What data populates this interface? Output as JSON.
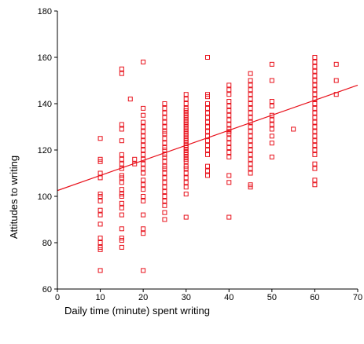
{
  "chart_data": {
    "type": "scatter",
    "title": "",
    "xlabel": "Daily time (minute) spent writing",
    "ylabel": "Attitudes to writing",
    "xlim": [
      0,
      70
    ],
    "ylim": [
      60,
      180
    ],
    "xticks": [
      "0",
      "10",
      "20",
      "30",
      "40",
      "50",
      "60",
      "70"
    ],
    "yticks": [
      "60",
      "80",
      "100",
      "120",
      "140",
      "160",
      "180"
    ],
    "grid": false,
    "legend": false,
    "marker": "square-open",
    "color": "#e8101a",
    "fit_line": {
      "intercept": 102.5,
      "slope": 0.65,
      "x_range": [
        0,
        70
      ]
    },
    "points": [
      [
        10,
        68
      ],
      [
        10,
        77
      ],
      [
        10,
        78
      ],
      [
        10,
        80
      ],
      [
        10,
        82
      ],
      [
        10,
        88
      ],
      [
        10,
        92
      ],
      [
        10,
        94
      ],
      [
        10,
        98
      ],
      [
        10,
        100
      ],
      [
        10,
        101
      ],
      [
        10,
        108
      ],
      [
        10,
        110
      ],
      [
        10,
        115
      ],
      [
        10,
        116
      ],
      [
        10,
        125
      ],
      [
        15,
        78
      ],
      [
        15,
        81
      ],
      [
        15,
        82
      ],
      [
        15,
        86
      ],
      [
        15,
        92
      ],
      [
        15,
        95
      ],
      [
        15,
        97
      ],
      [
        15,
        100
      ],
      [
        15,
        101
      ],
      [
        15,
        103
      ],
      [
        15,
        106
      ],
      [
        15,
        108
      ],
      [
        15,
        109
      ],
      [
        15,
        112
      ],
      [
        15,
        114
      ],
      [
        15,
        116
      ],
      [
        15,
        118
      ],
      [
        15,
        124
      ],
      [
        15,
        129
      ],
      [
        15,
        131
      ],
      [
        15,
        153
      ],
      [
        15,
        155
      ],
      [
        17,
        142
      ],
      [
        18,
        114
      ],
      [
        18,
        116
      ],
      [
        20,
        68
      ],
      [
        20,
        84
      ],
      [
        20,
        86
      ],
      [
        20,
        92
      ],
      [
        20,
        98
      ],
      [
        20,
        100
      ],
      [
        20,
        103
      ],
      [
        20,
        105
      ],
      [
        20,
        107
      ],
      [
        20,
        110
      ],
      [
        20,
        112
      ],
      [
        20,
        114
      ],
      [
        20,
        116
      ],
      [
        20,
        118
      ],
      [
        20,
        120
      ],
      [
        20,
        122
      ],
      [
        20,
        124
      ],
      [
        20,
        126
      ],
      [
        20,
        128
      ],
      [
        20,
        130
      ],
      [
        20,
        132
      ],
      [
        20,
        135
      ],
      [
        20,
        138
      ],
      [
        20,
        158
      ],
      [
        25,
        90
      ],
      [
        25,
        93
      ],
      [
        25,
        96
      ],
      [
        25,
        98
      ],
      [
        25,
        100
      ],
      [
        25,
        102
      ],
      [
        25,
        104
      ],
      [
        25,
        106
      ],
      [
        25,
        108
      ],
      [
        25,
        110
      ],
      [
        25,
        112
      ],
      [
        25,
        113
      ],
      [
        25,
        115
      ],
      [
        25,
        117
      ],
      [
        25,
        118
      ],
      [
        25,
        120
      ],
      [
        25,
        121
      ],
      [
        25,
        123
      ],
      [
        25,
        125
      ],
      [
        25,
        127
      ],
      [
        25,
        128
      ],
      [
        25,
        130
      ],
      [
        25,
        132
      ],
      [
        25,
        134
      ],
      [
        25,
        136
      ],
      [
        25,
        138
      ],
      [
        25,
        140
      ],
      [
        30,
        91
      ],
      [
        30,
        101
      ],
      [
        30,
        104
      ],
      [
        30,
        106
      ],
      [
        30,
        108
      ],
      [
        30,
        110
      ],
      [
        30,
        112
      ],
      [
        30,
        113
      ],
      [
        30,
        115
      ],
      [
        30,
        116
      ],
      [
        30,
        117
      ],
      [
        30,
        118
      ],
      [
        30,
        119
      ],
      [
        30,
        120
      ],
      [
        30,
        121
      ],
      [
        30,
        122
      ],
      [
        30,
        123
      ],
      [
        30,
        124
      ],
      [
        30,
        125
      ],
      [
        30,
        126
      ],
      [
        30,
        127
      ],
      [
        30,
        128
      ],
      [
        30,
        129
      ],
      [
        30,
        130
      ],
      [
        30,
        131
      ],
      [
        30,
        132
      ],
      [
        30,
        133
      ],
      [
        30,
        134
      ],
      [
        30,
        135
      ],
      [
        30,
        136
      ],
      [
        30,
        137
      ],
      [
        30,
        138
      ],
      [
        30,
        140
      ],
      [
        30,
        142
      ],
      [
        30,
        144
      ],
      [
        35,
        109
      ],
      [
        35,
        111
      ],
      [
        35,
        113
      ],
      [
        35,
        118
      ],
      [
        35,
        120
      ],
      [
        35,
        122
      ],
      [
        35,
        124
      ],
      [
        35,
        126
      ],
      [
        35,
        128
      ],
      [
        35,
        130
      ],
      [
        35,
        132
      ],
      [
        35,
        134
      ],
      [
        35,
        136
      ],
      [
        35,
        138
      ],
      [
        35,
        140
      ],
      [
        35,
        143
      ],
      [
        35,
        144
      ],
      [
        35,
        160
      ],
      [
        40,
        91
      ],
      [
        40,
        106
      ],
      [
        40,
        109
      ],
      [
        40,
        117
      ],
      [
        40,
        119
      ],
      [
        40,
        121
      ],
      [
        40,
        123
      ],
      [
        40,
        125
      ],
      [
        40,
        127
      ],
      [
        40,
        128
      ],
      [
        40,
        129
      ],
      [
        40,
        131
      ],
      [
        40,
        133
      ],
      [
        40,
        135
      ],
      [
        40,
        137
      ],
      [
        40,
        139
      ],
      [
        40,
        141
      ],
      [
        40,
        144
      ],
      [
        40,
        146
      ],
      [
        40,
        148
      ],
      [
        45,
        104
      ],
      [
        45,
        105
      ],
      [
        45,
        110
      ],
      [
        45,
        112
      ],
      [
        45,
        114
      ],
      [
        45,
        116
      ],
      [
        45,
        118
      ],
      [
        45,
        120
      ],
      [
        45,
        122
      ],
      [
        45,
        124
      ],
      [
        45,
        126
      ],
      [
        45,
        128
      ],
      [
        45,
        130
      ],
      [
        45,
        132
      ],
      [
        45,
        134
      ],
      [
        45,
        136
      ],
      [
        45,
        138
      ],
      [
        45,
        140
      ],
      [
        45,
        142
      ],
      [
        45,
        144
      ],
      [
        45,
        146
      ],
      [
        45,
        148
      ],
      [
        45,
        150
      ],
      [
        45,
        153
      ],
      [
        50,
        117
      ],
      [
        50,
        123
      ],
      [
        50,
        126
      ],
      [
        50,
        129
      ],
      [
        50,
        131
      ],
      [
        50,
        133
      ],
      [
        50,
        135
      ],
      [
        50,
        139
      ],
      [
        50,
        141
      ],
      [
        50,
        150
      ],
      [
        50,
        157
      ],
      [
        55,
        129
      ],
      [
        60,
        105
      ],
      [
        60,
        107
      ],
      [
        60,
        112
      ],
      [
        60,
        114
      ],
      [
        60,
        118
      ],
      [
        60,
        120
      ],
      [
        60,
        122
      ],
      [
        60,
        124
      ],
      [
        60,
        126
      ],
      [
        60,
        128
      ],
      [
        60,
        130
      ],
      [
        60,
        132
      ],
      [
        60,
        134
      ],
      [
        60,
        136
      ],
      [
        60,
        138
      ],
      [
        60,
        140
      ],
      [
        60,
        142
      ],
      [
        60,
        144
      ],
      [
        60,
        146
      ],
      [
        60,
        148
      ],
      [
        60,
        150
      ],
      [
        60,
        152
      ],
      [
        60,
        154
      ],
      [
        60,
        156
      ],
      [
        60,
        158
      ],
      [
        60,
        160
      ],
      [
        65,
        144
      ],
      [
        65,
        150
      ],
      [
        65,
        157
      ]
    ]
  }
}
